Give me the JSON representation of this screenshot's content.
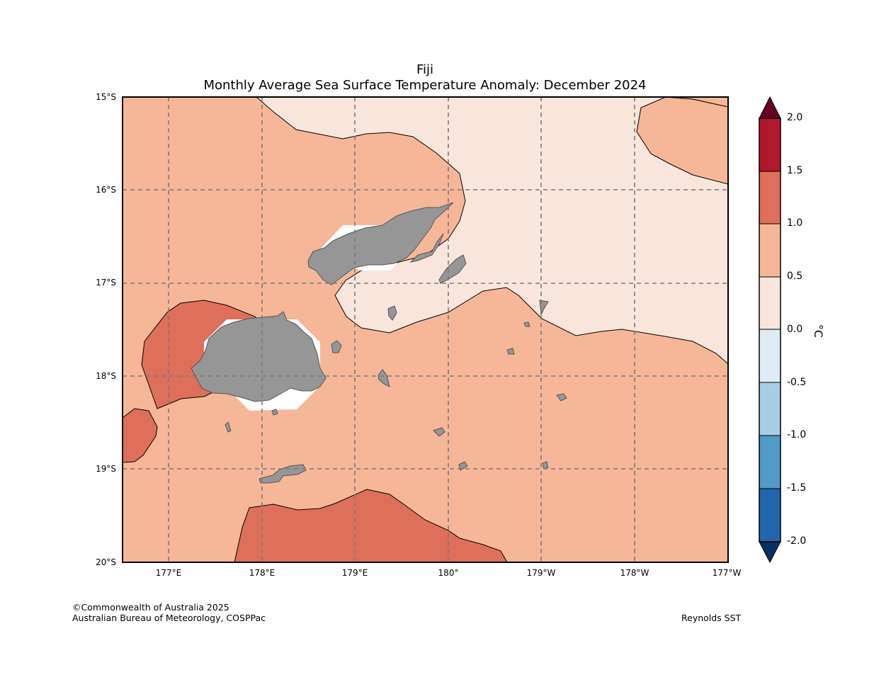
{
  "title": "Fiji",
  "subtitle": "Monthly Average Sea Surface Temperature Anomaly: December 2024",
  "map": {
    "lat_labels": [
      "15°S",
      "16°S",
      "17°S",
      "18°S",
      "19°S",
      "20°S"
    ],
    "lon_labels": [
      "177°E",
      "178°E",
      "179°E",
      "180°",
      "179°W",
      "178°W",
      "177°W"
    ],
    "land_color": "#969696",
    "grid": "dashed"
  },
  "colorbar": {
    "unit": "°C",
    "ticks": [
      "2.0",
      "1.5",
      "1.0",
      "0.5",
      "0.0",
      "-0.5",
      "-1.0",
      "-1.5",
      "-2.0"
    ],
    "colors": {
      "over": "#67001f",
      "1.5_to_2.0": "#b2182b",
      "1.0_to_1.5": "#de6f5a",
      "0.5_to_1.0": "#f6b798",
      "0.0_to_0.5": "#f8e6dc",
      "-0.5_to_0.0": "#deebf2",
      "-1.0_to_-0.5": "#a6cee4",
      "-1.5_to_-1.0": "#5199c7",
      "-2.0_to_-1.5": "#2166ac",
      "under": "#053061"
    }
  },
  "footer": {
    "copyright": "©Commonwealth of Australia 2025",
    "agency": "Australian Bureau of Meteorology, COSPPac",
    "source": "Reynolds SST"
  }
}
